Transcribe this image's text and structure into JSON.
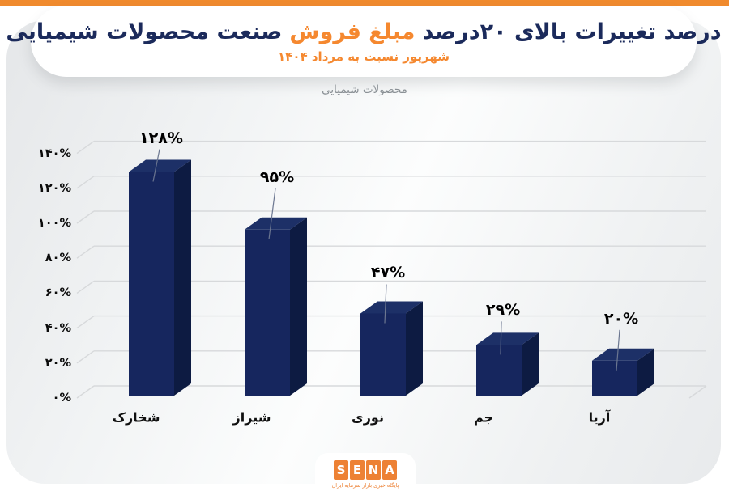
{
  "header": {
    "title_part1": "درصد تغییرات بالای ۲۰درصد",
    "title_highlight": "مبلغ فروش",
    "title_part2": "صنعت محصولات شیمیایی",
    "subtitle": "شهریور نسبت به مرداد ۱۴۰۴",
    "quote_right_glyph": "”",
    "quote_left_glyph": "“"
  },
  "chart_data": {
    "type": "bar",
    "style": "3d-column",
    "title": "محصولات شیمیایی",
    "categories": [
      "شخارک",
      "شیراز",
      "نوری",
      "جم",
      "آریا"
    ],
    "values": [
      128,
      95,
      47,
      29,
      20
    ],
    "value_labels": [
      "۱۲۸%",
      "۹۵%",
      "۴۷%",
      "۲۹%",
      "۲۰%"
    ],
    "unit": "%",
    "ylim": [
      0,
      140
    ],
    "y_ticks": [
      0,
      20,
      40,
      60,
      80,
      100,
      120,
      140
    ],
    "y_tick_labels": [
      "۰%",
      "۲۰%",
      "۴۰%",
      "۶۰%",
      "۸۰%",
      "۱۰۰%",
      "۱۲۰%",
      "۱۴۰%"
    ],
    "grid": true,
    "legend": "none"
  },
  "footer": {
    "logo_letters": [
      "S",
      "E",
      "N",
      "A"
    ],
    "logo_tagline": "پایگاه خبری بازار سرمایه ایران"
  },
  "colors": {
    "accent_orange": "#F08A2D",
    "title_navy": "#1B2A5B",
    "highlight_orange": "#F5882F",
    "quote_teal": "#2BA093",
    "bar_front": "#16265E",
    "bar_side": "#0D1B42",
    "bar_top": "#1D3067",
    "gridline": "#D7D9DB",
    "leader_line": "#6B7690",
    "chart_title_gray": "#8A9095",
    "logo_orange": "#ED8134"
  }
}
